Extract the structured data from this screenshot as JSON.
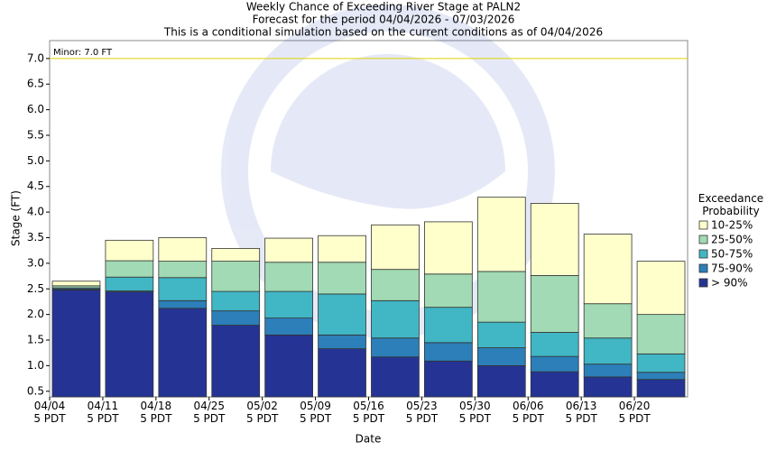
{
  "chart_data": {
    "type": "floating-bar",
    "title": "Weekly Chance of Exceeding River Stage at PALN2",
    "subtitle": "Forecast for the period 04/04/2026 - 07/03/2026",
    "subtitle2": "This is a conditional simulation based on the current conditions as of 04/04/2026",
    "x_label": "Date",
    "y_label": "Stage (FT)",
    "legend_title": "Exceedance\nProbability",
    "categories": [
      "04/04\n5 PDT",
      "04/11\n5 PDT",
      "04/18\n5 PDT",
      "04/25\n5 PDT",
      "05/02\n5 PDT",
      "05/09\n5 PDT",
      "05/16\n5 PDT",
      "05/23\n5 PDT",
      "05/30\n5 PDT",
      "06/06\n5 PDT",
      "06/13\n5 PDT",
      "06/20\n5 PDT"
    ],
    "series": [
      {
        "name": "> 90%",
        "color": "#253494",
        "values": [
          2.48,
          2.44,
          2.12,
          1.79,
          1.6,
          1.33,
          1.17,
          1.09,
          1.0,
          0.88,
          0.78,
          0.73
        ]
      },
      {
        "name": "75-90%",
        "color": "#2c7fb8",
        "values": [
          2.5,
          2.46,
          2.27,
          2.07,
          1.93,
          1.6,
          1.54,
          1.45,
          1.35,
          1.18,
          1.03,
          0.87
        ]
      },
      {
        "name": "50-75%",
        "color": "#41b6c4",
        "values": [
          2.52,
          2.73,
          2.72,
          2.45,
          2.45,
          2.4,
          2.27,
          2.14,
          1.85,
          1.65,
          1.54,
          1.23
        ]
      },
      {
        "name": "25-50%",
        "color": "#a1dab4",
        "values": [
          2.56,
          3.05,
          3.04,
          3.04,
          3.02,
          3.02,
          2.88,
          2.79,
          2.84,
          2.76,
          2.21,
          2.0
        ]
      },
      {
        "name": "10-25%",
        "color": "#ffffcc",
        "values": [
          2.65,
          3.45,
          3.5,
          3.29,
          3.49,
          3.54,
          3.75,
          3.81,
          4.29,
          4.17,
          3.57,
          3.04
        ]
      }
    ],
    "ylim": [
      0.39,
      7.35
    ],
    "yticks": [
      0.5,
      {
        "value": 1.0,
        "label": "1.0"
      },
      1.5,
      {
        "value": 2.0,
        "label": "2.0"
      },
      2.5,
      {
        "value": 3.0,
        "label": "3.0"
      },
      3.5,
      {
        "value": 4.0,
        "label": "4.0"
      },
      4.5,
      {
        "value": 5.0,
        "label": "5.0"
      },
      5.5,
      {
        "value": 6.0,
        "label": "6.0"
      },
      6.5,
      {
        "value": 7.0,
        "label": "7.0"
      }
    ],
    "annotations": [
      {
        "label": "Minor: 7.0 FT",
        "value": 7.0,
        "color": "#e0d000"
      }
    ]
  }
}
